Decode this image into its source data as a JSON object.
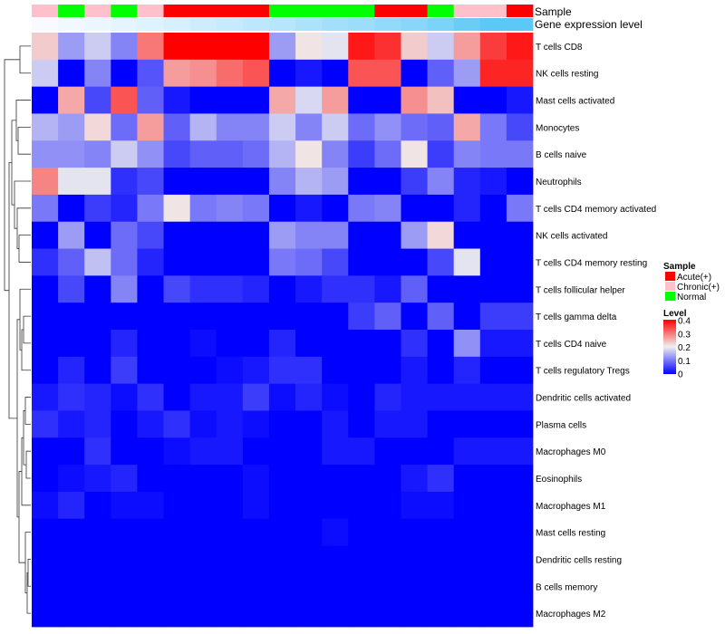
{
  "annotation_tracks": [
    {
      "label": "Sample",
      "kind": "categorical",
      "values": [
        "Chronic(+)",
        "Normal",
        "Chronic(+)",
        "Normal",
        "Chronic(+)",
        "Acute(+)",
        "Acute(+)",
        "Acute(+)",
        "Acute(+)",
        "Normal",
        "Normal",
        "Normal",
        "Normal",
        "Acute(+)",
        "Acute(+)",
        "Normal",
        "Chronic(+)",
        "Chronic(+)",
        "Acute(+)"
      ]
    },
    {
      "label": "Gene expression level",
      "kind": "continuous",
      "values": [
        0.02,
        0.04,
        0.06,
        0.08,
        0.1,
        0.12,
        0.15,
        0.17,
        0.2,
        0.22,
        0.25,
        0.28,
        0.3,
        0.33,
        0.36,
        0.4,
        0.45,
        0.5,
        0.5
      ]
    }
  ],
  "legend": {
    "sample_title": "Sample",
    "sample_items": [
      {
        "label": "Acute(+)",
        "color": "#ff0000"
      },
      {
        "label": "Chronic(+)",
        "color": "#ffc0cb"
      },
      {
        "label": "Normal",
        "color": "#00ff00"
      }
    ],
    "level_title": "Level",
    "level_ticks": [
      "0.4",
      "0.3",
      "0.2",
      "0.1",
      "0"
    ]
  },
  "colors": {
    "low": "#0000ff",
    "mid": "#f0f0f0",
    "high": "#ff0000",
    "gene_low": "#f7fbff",
    "gene_high": "#5bc8f5"
  },
  "chart_data": {
    "type": "heatmap",
    "title": "",
    "value_range": [
      0,
      0.4
    ],
    "columns": 19,
    "rows": [
      "T cells CD8",
      "NK cells resting",
      "Mast cells activated",
      "Monocytes",
      "B cells naive",
      "Neutrophils",
      "T cells CD4 memory activated",
      "NK cells activated",
      "T cells CD4 memory resting",
      "T cells follicular helper",
      "T cells gamma delta",
      "T cells CD4 naive",
      "T cells regulatory  Tregs",
      "Dendritic cells activated",
      "Plasma cells",
      "Macrophages M0",
      "Eosinophils",
      "Macrophages M1",
      "Mast cells resting",
      "Dendritic cells resting",
      "B cells memory",
      "Macrophages M2"
    ],
    "values": [
      [
        0.23,
        0.13,
        0.17,
        0.11,
        0.3,
        0.4,
        0.4,
        0.4,
        0.4,
        0.13,
        0.21,
        0.19,
        0.38,
        0.36,
        0.23,
        0.17,
        0.27,
        0.35,
        0.38
      ],
      [
        0.17,
        0.0,
        0.11,
        0.0,
        0.07,
        0.27,
        0.28,
        0.31,
        0.33,
        0.0,
        0.02,
        0.0,
        0.33,
        0.33,
        0.0,
        0.08,
        0.13,
        0.37,
        0.37
      ],
      [
        0.0,
        0.26,
        0.06,
        0.33,
        0.08,
        0.02,
        0.0,
        0.0,
        0.0,
        0.26,
        0.18,
        0.27,
        0.0,
        0.0,
        0.28,
        0.24,
        0.0,
        0.0,
        0.02
      ],
      [
        0.15,
        0.13,
        0.22,
        0.09,
        0.27,
        0.08,
        0.15,
        0.11,
        0.11,
        0.17,
        0.11,
        0.17,
        0.09,
        0.12,
        0.09,
        0.08,
        0.26,
        0.1,
        0.06
      ],
      [
        0.12,
        0.12,
        0.11,
        0.17,
        0.12,
        0.06,
        0.08,
        0.08,
        0.09,
        0.15,
        0.21,
        0.11,
        0.05,
        0.09,
        0.21,
        0.05,
        0.11,
        0.1,
        0.1
      ],
      [
        0.29,
        0.19,
        0.19,
        0.04,
        0.06,
        0.0,
        0.0,
        0.0,
        0.0,
        0.11,
        0.15,
        0.13,
        0.0,
        0.0,
        0.05,
        0.11,
        0.03,
        0.02,
        0.0
      ],
      [
        0.1,
        0.0,
        0.05,
        0.03,
        0.1,
        0.21,
        0.1,
        0.11,
        0.1,
        0.0,
        0.02,
        0.0,
        0.1,
        0.11,
        0.0,
        0.0,
        0.03,
        0.0,
        0.1
      ],
      [
        0.0,
        0.13,
        0.0,
        0.09,
        0.06,
        0.0,
        0.0,
        0.0,
        0.0,
        0.13,
        0.11,
        0.11,
        0.0,
        0.0,
        0.13,
        0.22,
        0.0,
        0.0,
        0.0
      ],
      [
        0.04,
        0.08,
        0.16,
        0.09,
        0.03,
        0.0,
        0.0,
        0.0,
        0.0,
        0.1,
        0.09,
        0.06,
        0.0,
        0.0,
        0.0,
        0.06,
        0.19,
        0.0,
        0.0
      ],
      [
        0.0,
        0.06,
        0.0,
        0.11,
        0.0,
        0.06,
        0.04,
        0.04,
        0.03,
        0.0,
        0.02,
        0.04,
        0.04,
        0.02,
        0.08,
        0.0,
        0.0,
        0.0,
        0.0
      ],
      [
        0.0,
        0.0,
        0.0,
        0.0,
        0.0,
        0.0,
        0.0,
        0.0,
        0.0,
        0.0,
        0.0,
        0.0,
        0.05,
        0.08,
        0.0,
        0.08,
        0.0,
        0.05,
        0.05
      ],
      [
        0.0,
        0.0,
        0.0,
        0.03,
        0.0,
        0.0,
        0.01,
        0.0,
        0.0,
        0.03,
        0.0,
        0.0,
        0.0,
        0.0,
        0.04,
        0.0,
        0.12,
        0.02,
        0.02
      ],
      [
        0.0,
        0.03,
        0.0,
        0.05,
        0.0,
        0.0,
        0.0,
        0.01,
        0.02,
        0.04,
        0.04,
        0.0,
        0.0,
        0.0,
        0.02,
        0.0,
        0.03,
        0.0,
        0.0
      ],
      [
        0.02,
        0.04,
        0.03,
        0.01,
        0.04,
        0.0,
        0.02,
        0.02,
        0.05,
        0.01,
        0.03,
        0.01,
        0.0,
        0.03,
        0.02,
        0.02,
        0.02,
        0.02,
        0.02
      ],
      [
        0.04,
        0.02,
        0.03,
        0.0,
        0.02,
        0.04,
        0.01,
        0.02,
        0.01,
        0.0,
        0.0,
        0.02,
        0.0,
        0.02,
        0.02,
        0.0,
        0.0,
        0.0,
        0.0
      ],
      [
        0.0,
        0.0,
        0.04,
        0.0,
        0.0,
        0.01,
        0.02,
        0.02,
        0.0,
        0.0,
        0.0,
        0.02,
        0.02,
        0.0,
        0.0,
        0.0,
        0.02,
        0.02,
        0.02
      ],
      [
        0.0,
        0.01,
        0.02,
        0.03,
        0.0,
        0.0,
        0.0,
        0.0,
        0.01,
        0.0,
        0.0,
        0.0,
        0.0,
        0.0,
        0.02,
        0.04,
        0.0,
        0.0,
        0.0
      ],
      [
        0.01,
        0.03,
        0.0,
        0.01,
        0.01,
        0.0,
        0.0,
        0.0,
        0.01,
        0.0,
        0.0,
        0.0,
        0.0,
        0.0,
        0.01,
        0.01,
        0.0,
        0.0,
        0.0
      ],
      [
        0.0,
        0.0,
        0.0,
        0.0,
        0.0,
        0.0,
        0.0,
        0.0,
        0.0,
        0.0,
        0.0,
        0.01,
        0.0,
        0.0,
        0.0,
        0.0,
        0.0,
        0.0,
        0.0
      ],
      [
        0.0,
        0.0,
        0.0,
        0.0,
        0.0,
        0.0,
        0.0,
        0.0,
        0.0,
        0.0,
        0.0,
        0.0,
        0.0,
        0.0,
        0.0,
        0.0,
        0.0,
        0.0,
        0.0
      ],
      [
        0.0,
        0.0,
        0.0,
        0.0,
        0.0,
        0.0,
        0.0,
        0.0,
        0.0,
        0.0,
        0.0,
        0.0,
        0.0,
        0.0,
        0.0,
        0.0,
        0.0,
        0.0,
        0.0
      ],
      [
        0.0,
        0.0,
        0.0,
        0.0,
        0.0,
        0.0,
        0.0,
        0.0,
        0.0,
        0.0,
        0.0,
        0.0,
        0.0,
        0.0,
        0.0,
        0.0,
        0.0,
        0.0,
        0.0
      ]
    ],
    "legend": "right",
    "grid": false
  }
}
